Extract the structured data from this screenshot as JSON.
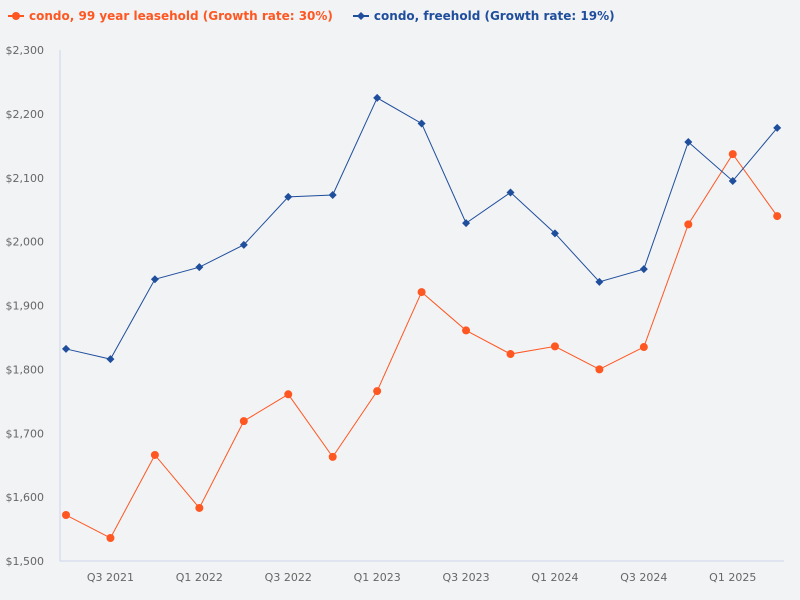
{
  "chart_data": {
    "type": "line",
    "title": "",
    "xlabel": "",
    "ylabel": "",
    "ylim": [
      1500,
      2300
    ],
    "yticks": [
      "$1,500",
      "$1,600",
      "$1,700",
      "$1,800",
      "$1,900",
      "$2,000",
      "$2,100",
      "$2,200",
      "$2,300"
    ],
    "ytick_values": [
      1500,
      1600,
      1700,
      1800,
      1900,
      2000,
      2100,
      2200,
      2300
    ],
    "x": [
      "Q2 2021",
      "Q3 2021",
      "Q4 2021",
      "Q1 2022",
      "Q2 2022",
      "Q3 2022",
      "Q4 2022",
      "Q1 2023",
      "Q2 2023",
      "Q3 2023",
      "Q4 2023",
      "Q1 2024",
      "Q2 2024",
      "Q3 2024",
      "Q4 2024",
      "Q1 2025",
      "Q2 2025"
    ],
    "xtick_labels": [
      "Q3 2021",
      "Q1 2022",
      "Q3 2022",
      "Q1 2023",
      "Q3 2023",
      "Q1 2024",
      "Q3 2024",
      "Q1 2025"
    ],
    "grid": false,
    "legend_position": "top-left",
    "series": [
      {
        "name": "condo, 99 year leasehold (Growth rate: 30%)",
        "color": "#ff5722",
        "marker": "circle",
        "values": [
          1572,
          1536,
          1666,
          1583,
          1719,
          1761,
          1663,
          1766,
          1921,
          1861,
          1824,
          1836,
          1800,
          1835,
          2027,
          2137,
          2040
        ]
      },
      {
        "name": "condo, freehold (Growth rate: 19%)",
        "color": "#1f4e9c",
        "marker": "diamond",
        "values": [
          1832,
          1816,
          1941,
          1960,
          1995,
          2070,
          2073,
          2225,
          2185,
          2029,
          2077,
          2013,
          1937,
          1957,
          2156,
          2095,
          2178
        ]
      }
    ]
  }
}
